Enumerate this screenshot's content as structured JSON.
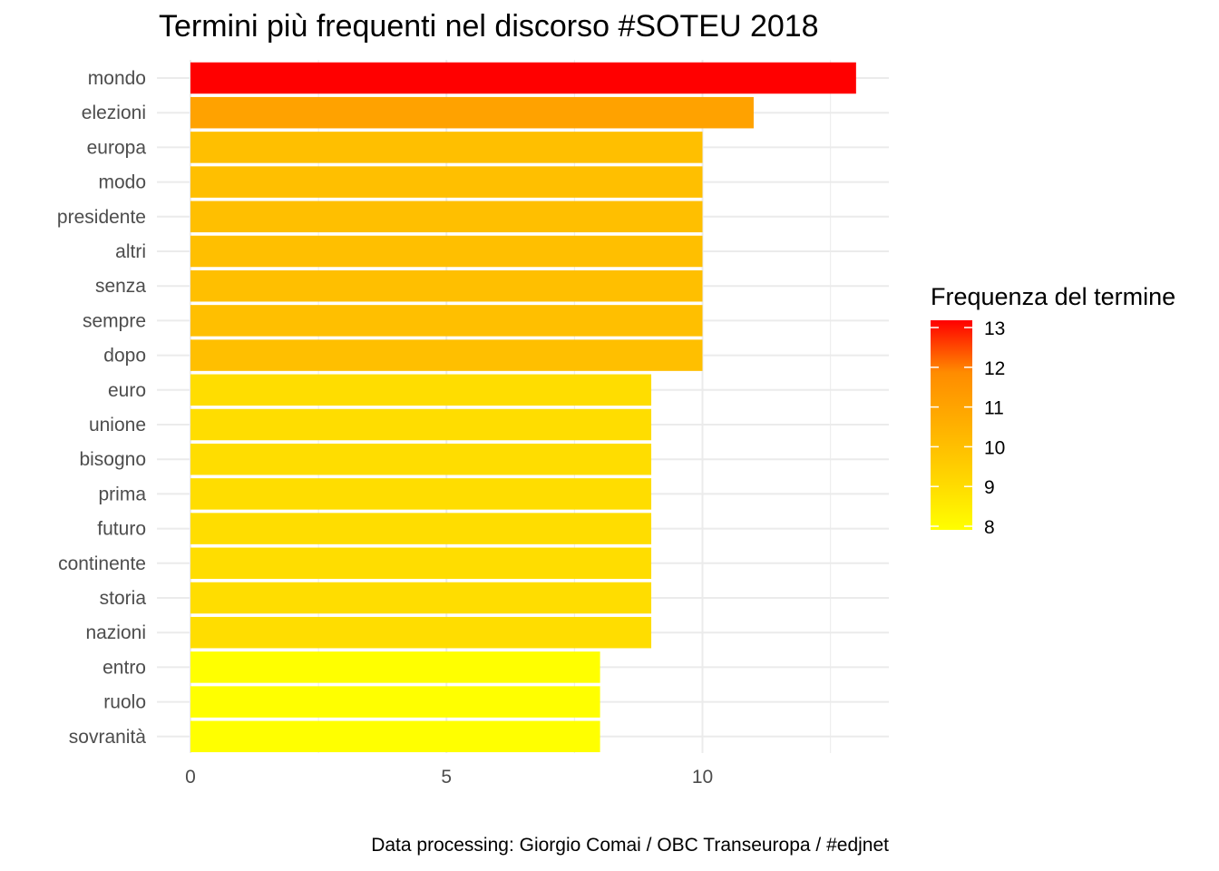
{
  "chart_data": {
    "type": "bar",
    "orientation": "horizontal",
    "title": "Termini più frequenti nel discorso #SOTEU 2018",
    "xlabel": "",
    "ylabel": "",
    "categories": [
      "mondo",
      "elezioni",
      "europa",
      "modo",
      "presidente",
      "altri",
      "senza",
      "sempre",
      "dopo",
      "euro",
      "unione",
      "bisogno",
      "prima",
      "futuro",
      "continente",
      "storia",
      "nazioni",
      "entro",
      "ruolo",
      "sovranità"
    ],
    "values": [
      13,
      11,
      10,
      10,
      10,
      10,
      10,
      10,
      10,
      9,
      9,
      9,
      9,
      9,
      9,
      9,
      9,
      8,
      8,
      8
    ],
    "xlim": [
      0,
      13.6
    ],
    "x_ticks": [
      0,
      5,
      10
    ],
    "grid": true,
    "legend": {
      "title": "Frequenza del termine",
      "position": "right",
      "ticks": [
        13,
        12,
        11,
        10,
        9,
        8
      ],
      "range": [
        8,
        13
      ],
      "colors": [
        "#FFFF00",
        "#FFD500",
        "#FFB000",
        "#FF8C00",
        "#FF0000"
      ]
    },
    "caption": "Data processing:  Giorgio Comai / OBC Transeuropa / #edjnet"
  }
}
